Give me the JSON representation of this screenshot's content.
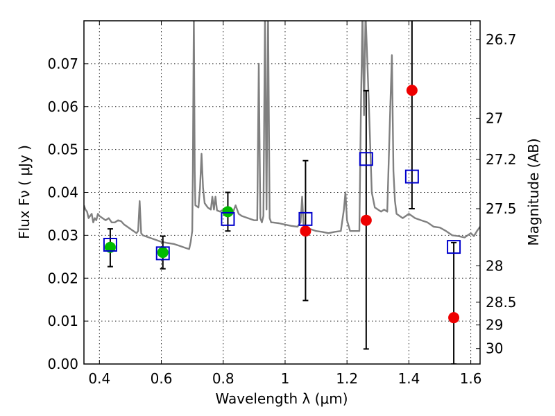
{
  "chart_data": {
    "type": "scatter",
    "xlabel": "Wavelength  λ (μm)",
    "ylabel": "Flux  Fν  ( μJy )",
    "ylabel_right": "Magnitude (AB)",
    "xlim": [
      0.35,
      1.63
    ],
    "ylim": [
      0.0,
      0.08
    ],
    "grid": true,
    "x_ticks": [
      0.4,
      0.6,
      0.8,
      1.0,
      1.2,
      1.4,
      1.6
    ],
    "x_tick_labels": [
      "0.4",
      "0.6",
      "0.8",
      "1",
      "1.2",
      "1.4",
      "1.6"
    ],
    "y_ticks": [
      0.0,
      0.01,
      0.02,
      0.03,
      0.04,
      0.05,
      0.06,
      0.07
    ],
    "y_tick_labels": [
      "0.00",
      "0.01",
      "0.02",
      "0.03",
      "0.04",
      "0.05",
      "0.06",
      "0.07"
    ],
    "right_ticks": [
      {
        "label": "26.7",
        "flux": 0.0756
      },
      {
        "label": "27",
        "flux": 0.0573
      },
      {
        "label": "27.2",
        "flux": 0.0477
      },
      {
        "label": "27.5",
        "flux": 0.0362
      },
      {
        "label": "28",
        "flux": 0.0229
      },
      {
        "label": "28.5",
        "flux": 0.0144
      },
      {
        "label": "29",
        "flux": 0.0091
      },
      {
        "label": "30",
        "flux": 0.0036
      }
    ],
    "spectrum": {
      "color": "#808080",
      "x": [
        0.35,
        0.355,
        0.36,
        0.365,
        0.37,
        0.375,
        0.38,
        0.385,
        0.39,
        0.395,
        0.4,
        0.41,
        0.42,
        0.43,
        0.44,
        0.45,
        0.46,
        0.47,
        0.48,
        0.49,
        0.5,
        0.51,
        0.52,
        0.525,
        0.53,
        0.535,
        0.54,
        0.56,
        0.58,
        0.6,
        0.62,
        0.64,
        0.66,
        0.68,
        0.69,
        0.695,
        0.7,
        0.702,
        0.705,
        0.708,
        0.71,
        0.72,
        0.725,
        0.73,
        0.735,
        0.74,
        0.75,
        0.76,
        0.765,
        0.77,
        0.775,
        0.78,
        0.79,
        0.8,
        0.81,
        0.82,
        0.83,
        0.84,
        0.85,
        0.86,
        0.88,
        0.9,
        0.91,
        0.915,
        0.92,
        0.925,
        0.93,
        0.935,
        0.94,
        0.945,
        0.95,
        0.955,
        0.96,
        0.98,
        1.0,
        1.02,
        1.04,
        1.05,
        1.055,
        1.06,
        1.07,
        1.08,
        1.1,
        1.12,
        1.14,
        1.16,
        1.18,
        1.19,
        1.195,
        1.2,
        1.21,
        1.22,
        1.24,
        1.245,
        1.25,
        1.255,
        1.26,
        1.27,
        1.28,
        1.29,
        1.3,
        1.31,
        1.32,
        1.33,
        1.34,
        1.345,
        1.35,
        1.355,
        1.36,
        1.38,
        1.4,
        1.42,
        1.44,
        1.46,
        1.48,
        1.5,
        1.52,
        1.54,
        1.56,
        1.58,
        1.6,
        1.61,
        1.62,
        1.63
      ],
      "y": [
        0.037,
        0.036,
        0.0355,
        0.034,
        0.0345,
        0.035,
        0.033,
        0.034,
        0.0335,
        0.035,
        0.0345,
        0.034,
        0.0335,
        0.034,
        0.033,
        0.033,
        0.0335,
        0.0333,
        0.0325,
        0.032,
        0.0315,
        0.031,
        0.0305,
        0.031,
        0.038,
        0.0305,
        0.03,
        0.0295,
        0.029,
        0.0285,
        0.0282,
        0.028,
        0.0275,
        0.027,
        0.0268,
        0.0285,
        0.031,
        0.045,
        0.082,
        0.045,
        0.037,
        0.0365,
        0.041,
        0.049,
        0.041,
        0.0375,
        0.0365,
        0.036,
        0.039,
        0.036,
        0.039,
        0.0358,
        0.0355,
        0.036,
        0.0355,
        0.035,
        0.035,
        0.037,
        0.035,
        0.0345,
        0.034,
        0.0335,
        0.0335,
        0.07,
        0.034,
        0.033,
        0.0345,
        0.082,
        0.036,
        0.082,
        0.034,
        0.033,
        0.033,
        0.0328,
        0.0325,
        0.0322,
        0.032,
        0.033,
        0.039,
        0.032,
        0.0318,
        0.0315,
        0.031,
        0.0308,
        0.0305,
        0.0308,
        0.031,
        0.036,
        0.04,
        0.0335,
        0.031,
        0.031,
        0.031,
        0.06,
        0.082,
        0.058,
        0.082,
        0.062,
        0.04,
        0.0365,
        0.036,
        0.0355,
        0.036,
        0.0355,
        0.06,
        0.072,
        0.045,
        0.038,
        0.035,
        0.034,
        0.035,
        0.034,
        0.0335,
        0.033,
        0.032,
        0.0318,
        0.031,
        0.03,
        0.0298,
        0.0295,
        0.0305,
        0.0298,
        0.031,
        0.032
      ]
    },
    "series": [
      {
        "marker": "circle",
        "color": "#00bb00",
        "x": [
          0.435,
          0.605,
          0.815
        ],
        "y": [
          0.0272,
          0.026,
          0.0355
        ],
        "err_low": [
          0.0227,
          0.0222,
          0.031
        ],
        "err_high": [
          0.0315,
          0.0298,
          0.04
        ]
      },
      {
        "marker": "circle",
        "color": "#ee0000",
        "x": [
          1.066,
          1.262,
          1.41,
          1.545
        ],
        "y": [
          0.031,
          0.0335,
          0.0638,
          0.0108
        ],
        "err_low": [
          0.0148,
          0.0035,
          0.0362,
          0.0
        ],
        "err_high": [
          0.0474,
          0.0637,
          0.082,
          0.0283
        ]
      },
      {
        "marker": "square",
        "color": "#0000cc",
        "x": [
          0.435,
          0.605,
          0.815,
          1.066,
          1.262,
          1.41,
          1.545
        ],
        "y": [
          0.0278,
          0.0258,
          0.0338,
          0.0338,
          0.0478,
          0.0437,
          0.0273
        ]
      }
    ]
  }
}
